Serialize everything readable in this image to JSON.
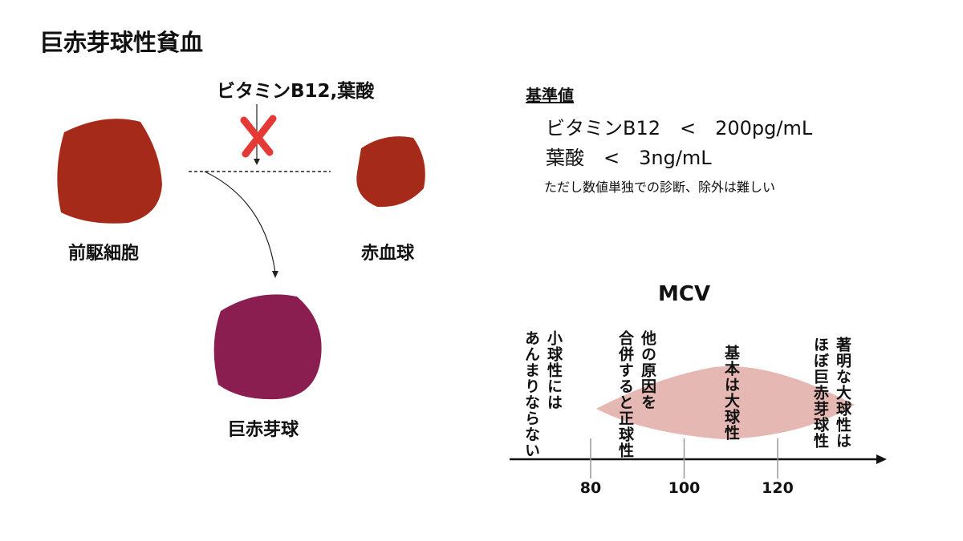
{
  "title": "巨赤芽球性貧血",
  "pathway": {
    "inhibitor": "ビタミンB12,葉酸",
    "nodes": [
      {
        "label": "前駆細胞"
      },
      {
        "label": "赤血球"
      },
      {
        "label": "巨赤芽球"
      }
    ]
  },
  "reference": {
    "heading": "基準値",
    "lines": [
      "ビタミンB12　<　200pg/mL",
      "葉酸　<　3ng/mL"
    ],
    "note": "ただし数値単独での診断、除外は難しい"
  },
  "mcv": {
    "title": "MCV",
    "ticks": [
      80,
      100,
      120
    ],
    "labels": [
      {
        "lines": [
          "小球性には",
          "あんまりならない"
        ]
      },
      {
        "lines": [
          "他の原因を",
          "合併すると正球性"
        ]
      },
      {
        "lines": [
          "基本は大球性"
        ]
      },
      {
        "lines": [
          "著明な大球性は",
          "ほぼ巨赤芽球性"
        ]
      }
    ]
  }
}
